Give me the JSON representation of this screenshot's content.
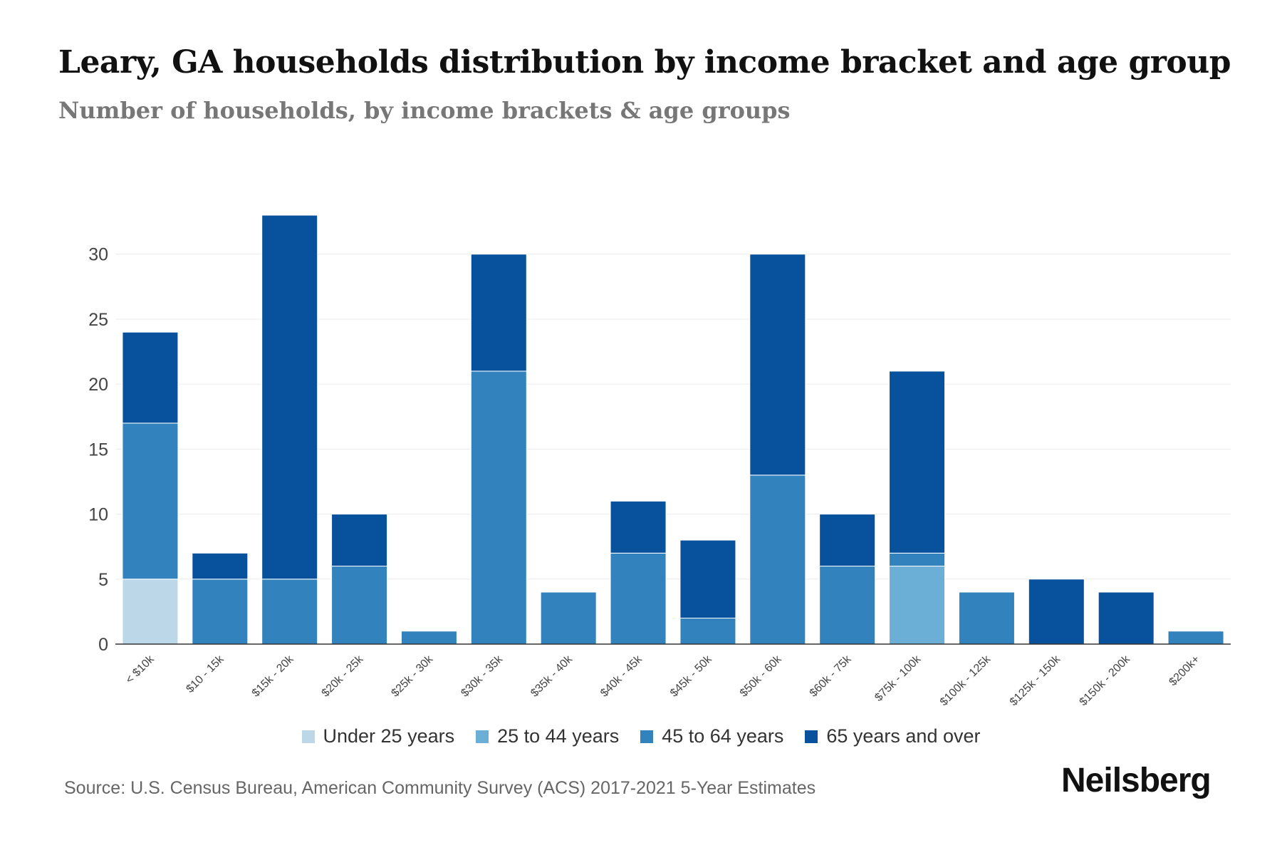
{
  "chart_data": {
    "type": "bar",
    "stacked": true,
    "title": "Leary, GA households distribution by income bracket and age group",
    "subtitle": "Number of households, by income brackets & age groups",
    "xlabel": "",
    "ylabel": "",
    "ylim": [
      0,
      33
    ],
    "yticks": [
      0,
      5,
      10,
      15,
      20,
      25,
      30
    ],
    "grid": true,
    "legend_position": "bottom",
    "categories": [
      "< $10k",
      "$10 - 15k",
      "$15k - 20k",
      "$20k - 25k",
      "$25k - 30k",
      "$30k - 35k",
      "$35k - 40k",
      "$40k - 45k",
      "$45k - 50k",
      "$50k - 60k",
      "$60k - 75k",
      "$75k - 100k",
      "$100k - 125k",
      "$125k - 150k",
      "$150k - 200k",
      "$200k+"
    ],
    "series": [
      {
        "name": "Under 25 years",
        "color": "#bcd8e8",
        "values": [
          5,
          0,
          0,
          0,
          0,
          0,
          0,
          0,
          0,
          0,
          0,
          0,
          0,
          0,
          0,
          0
        ]
      },
      {
        "name": "25 to 44 years",
        "color": "#6baed6",
        "values": [
          0,
          0,
          0,
          0,
          0,
          0,
          0,
          0,
          0,
          0,
          0,
          6,
          0,
          0,
          0,
          0
        ]
      },
      {
        "name": "45 to 64 years",
        "color": "#3182bd",
        "values": [
          12,
          5,
          5,
          6,
          1,
          21,
          4,
          7,
          2,
          13,
          6,
          1,
          4,
          0,
          0,
          1
        ]
      },
      {
        "name": "65 years and over",
        "color": "#08519c",
        "values": [
          7,
          2,
          28,
          4,
          0,
          9,
          0,
          4,
          6,
          17,
          4,
          14,
          0,
          5,
          4,
          0
        ]
      }
    ]
  },
  "source": "Source: U.S. Census Bureau, American Community Survey (ACS) 2017-2021 5-Year Estimates",
  "brand": "Neilsberg"
}
